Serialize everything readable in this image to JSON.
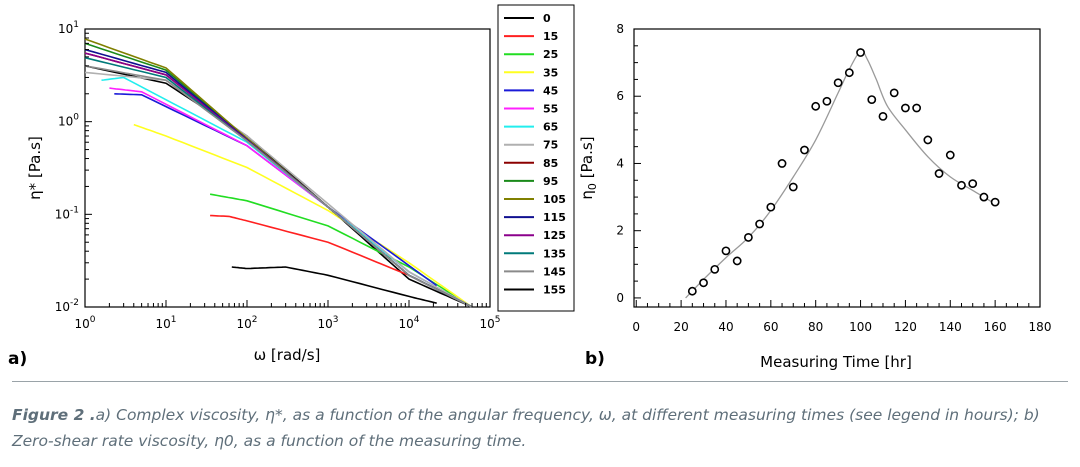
{
  "chart_data": [
    {
      "panel": "a)",
      "type": "line",
      "xscale": "log",
      "yscale": "log",
      "xlim": [
        1,
        100000
      ],
      "ylim": [
        0.01,
        10
      ],
      "xlabel": "ω [rad/s]",
      "ylabel": "η* [Pa.s]",
      "x_ticks": [
        {
          "base": "10",
          "exp": "0"
        },
        {
          "base": "10",
          "exp": "1"
        },
        {
          "base": "10",
          "exp": "2"
        },
        {
          "base": "10",
          "exp": "3"
        },
        {
          "base": "10",
          "exp": "4"
        },
        {
          "base": "10",
          "exp": "5"
        }
      ],
      "y_ticks": [
        {
          "base": "10",
          "exp": "-2"
        },
        {
          "base": "10",
          "exp": "-1"
        },
        {
          "base": "10",
          "exp": "0"
        },
        {
          "base": "10",
          "exp": "1"
        }
      ],
      "legend_title": "",
      "series": [
        {
          "name": "0",
          "color": "#000000",
          "x": [
            1,
            10,
            100,
            1000,
            10000,
            60000
          ],
          "y": [
            4.0,
            2.6,
            0.7,
            0.12,
            0.02,
            0.01
          ]
        },
        {
          "name": "15",
          "color": "#ff2020",
          "x": [
            35,
            60,
            100,
            1000,
            10000,
            60000
          ],
          "y": [
            0.097,
            0.095,
            0.085,
            0.05,
            0.022,
            0.01
          ]
        },
        {
          "name": "25",
          "color": "#22dd22",
          "x": [
            35,
            100,
            1000,
            10000,
            60000
          ],
          "y": [
            0.165,
            0.14,
            0.075,
            0.027,
            0.01
          ]
        },
        {
          "name": "35",
          "color": "#ffff20",
          "x": [
            4,
            10,
            100,
            1000,
            10000,
            60000
          ],
          "y": [
            0.93,
            0.7,
            0.32,
            0.11,
            0.03,
            0.01
          ]
        },
        {
          "name": "45",
          "color": "#1a1ad8",
          "x": [
            2.3,
            5,
            100,
            1000,
            10000,
            22000
          ],
          "y": [
            2.0,
            1.95,
            0.55,
            0.12,
            0.028,
            0.017
          ]
        },
        {
          "name": "55",
          "color": "#ff20ff",
          "x": [
            2.0,
            5,
            100,
            1000,
            10000,
            60000
          ],
          "y": [
            2.3,
            2.1,
            0.55,
            0.12,
            0.024,
            0.01
          ]
        },
        {
          "name": "65",
          "color": "#22eeee",
          "x": [
            1.6,
            3,
            100,
            1000,
            10000,
            60000
          ],
          "y": [
            2.8,
            3.0,
            0.6,
            0.12,
            0.024,
            0.01
          ]
        },
        {
          "name": "75",
          "color": "#b0b0b0",
          "x": [
            1,
            10,
            100,
            1000,
            10000,
            60000
          ],
          "y": [
            3.4,
            2.8,
            0.7,
            0.13,
            0.024,
            0.01
          ]
        },
        {
          "name": "85",
          "color": "#8b0000",
          "x": [
            1,
            10,
            100,
            1000,
            10000,
            60000
          ],
          "y": [
            5.5,
            3.2,
            0.65,
            0.12,
            0.022,
            0.01
          ]
        },
        {
          "name": "95",
          "color": "#1a8a1a",
          "x": [
            1,
            10,
            100,
            1000,
            10000,
            60000
          ],
          "y": [
            7.0,
            3.6,
            0.65,
            0.12,
            0.022,
            0.01
          ]
        },
        {
          "name": "105",
          "color": "#808000",
          "x": [
            1,
            10,
            100,
            1000,
            10000,
            60000
          ],
          "y": [
            7.8,
            3.8,
            0.66,
            0.12,
            0.022,
            0.01
          ]
        },
        {
          "name": "115",
          "color": "#101090",
          "x": [
            1,
            10,
            100,
            1000,
            10000,
            60000
          ],
          "y": [
            6.0,
            3.4,
            0.64,
            0.12,
            0.022,
            0.01
          ]
        },
        {
          "name": "125",
          "color": "#8b008b",
          "x": [
            1,
            10,
            100,
            1000,
            10000,
            60000
          ],
          "y": [
            5.5,
            3.2,
            0.63,
            0.12,
            0.022,
            0.01
          ]
        },
        {
          "name": "135",
          "color": "#007a7a",
          "x": [
            1,
            10,
            100,
            1000,
            10000,
            60000
          ],
          "y": [
            4.9,
            3.0,
            0.62,
            0.12,
            0.022,
            0.01
          ]
        },
        {
          "name": "145",
          "color": "#8a8a8a",
          "x": [
            1,
            10,
            100,
            1000,
            10000,
            60000
          ],
          "y": [
            4.0,
            2.8,
            0.62,
            0.12,
            0.022,
            0.01
          ]
        },
        {
          "name": "155",
          "color": "#000000",
          "x": [
            65,
            100,
            300,
            1000,
            10000,
            22000
          ],
          "y": [
            0.027,
            0.026,
            0.027,
            0.022,
            0.013,
            0.011
          ]
        }
      ]
    },
    {
      "panel": "b)",
      "type": "scatter",
      "xlim": [
        0,
        180
      ],
      "ylim": [
        0,
        8
      ],
      "x_ticks": [
        "0",
        "20",
        "40",
        "60",
        "80",
        "100",
        "120",
        "140",
        "160",
        "180"
      ],
      "y_ticks": [
        "0",
        "2",
        "4",
        "6",
        "8"
      ],
      "xlabel": "Measuring Time [hr]",
      "ylabel_base": "η",
      "ylabel_sub": "0",
      "ylabel_rest": " [Pa.s]",
      "x": [
        25,
        30,
        35,
        40,
        45,
        50,
        55,
        60,
        65,
        70,
        75,
        80,
        85,
        90,
        95,
        100,
        105,
        110,
        115,
        120,
        125,
        130,
        135,
        140,
        145,
        150,
        155,
        160
      ],
      "y": [
        0.2,
        0.45,
        0.85,
        1.4,
        1.1,
        1.8,
        2.2,
        2.7,
        4.0,
        3.3,
        4.4,
        5.7,
        5.85,
        6.4,
        6.7,
        7.3,
        5.9,
        5.4,
        6.1,
        5.65,
        5.65,
        4.7,
        3.7,
        4.25,
        3.35,
        3.4,
        3.0,
        2.85
      ],
      "fit_x": [
        22,
        30,
        40,
        50,
        60,
        70,
        80,
        90,
        95,
        100,
        103,
        107,
        112,
        120,
        130,
        140,
        150,
        160
      ],
      "fit_y": [
        0.0,
        0.55,
        1.2,
        1.8,
        2.6,
        3.6,
        4.7,
        6.1,
        6.8,
        7.35,
        7.1,
        6.5,
        5.7,
        5.0,
        4.2,
        3.6,
        3.2,
        2.8
      ]
    }
  ],
  "panel_labels": {
    "a": "a)",
    "b": "b)"
  },
  "caption": {
    "label": "Figure 2 .",
    "text": "a) Complex viscosity, η*, as a function of the angular frequency, ω, at different measuring times (see legend in hours); b) Zero-shear rate viscosity, η0, as a function of the measuring time."
  }
}
